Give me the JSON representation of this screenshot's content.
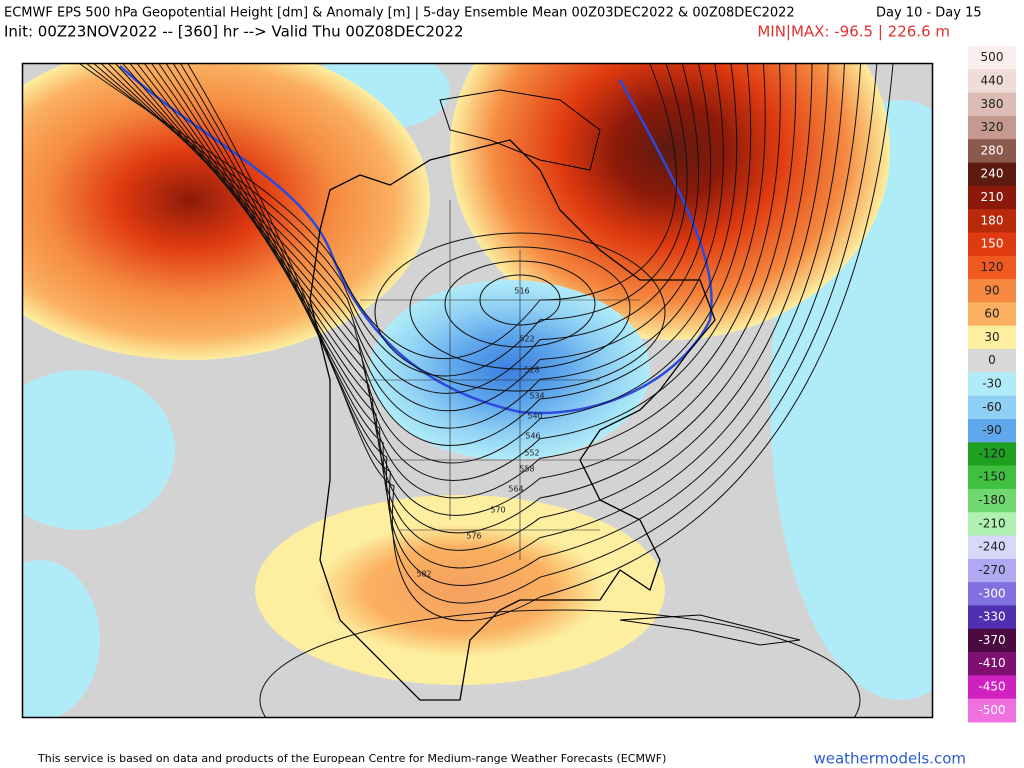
{
  "header": {
    "title": "ECMWF EPS 500 hPa Geopotential Height [dm] & Anomaly [m] | 5-day Ensemble Mean 00Z03DEC2022 & 00Z08DEC2022",
    "days": "Day 10 - Day 15",
    "init": "Init: 00Z23NOV2022 -- [360] hr --> Valid Thu 00Z08DEC2022",
    "minmax": "MIN|MAX: -96.5 | 226.6 m"
  },
  "map": {
    "contour_labels": [
      516,
      522,
      528,
      534,
      540,
      546,
      552,
      558,
      564,
      570,
      576,
      582
    ]
  },
  "colorbar": {
    "labels": [
      500,
      440,
      380,
      320,
      280,
      240,
      210,
      180,
      150,
      120,
      90,
      60,
      30,
      0,
      -30,
      -60,
      -90,
      -120,
      -150,
      -180,
      -210,
      -240,
      -270,
      -300,
      -330,
      -370,
      -410,
      -450,
      -500
    ],
    "colors": [
      "#fbeeee",
      "#f0dcd8",
      "#dcbcb4",
      "#c49a8e",
      "#8a5a4c",
      "#5c1a10",
      "#8c1a0a",
      "#b82a0a",
      "#e03a10",
      "#f05a20",
      "#f58a40",
      "#fab060",
      "#fdeea0",
      "#d8d8d8",
      "#b0ecf8",
      "#90d0f4",
      "#60a8ec",
      "#20a020",
      "#40c040",
      "#70d870",
      "#b0f0b0",
      "#d8d8f8",
      "#b0a8f0",
      "#8070e0",
      "#5030b0",
      "#4a0a40",
      "#801070",
      "#d020c0",
      "#f070e0"
    ]
  },
  "footer": {
    "credit": "This service is based on data and products of the European Centre for Medium-range Weather Forecasts (ECMWF)",
    "site": "weathermodels.com"
  }
}
